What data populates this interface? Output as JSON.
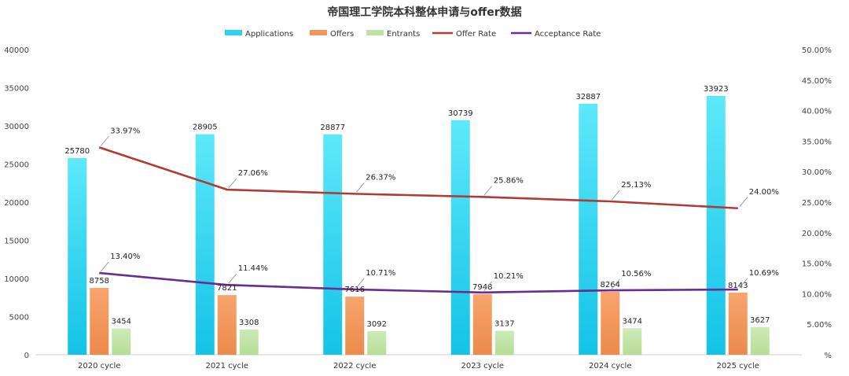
{
  "chart_data": {
    "type": "bar",
    "title": "帝国理工学院本科整体申请与offer数据",
    "categories": [
      "2020 cycle",
      "2021 cycle",
      "2022 cycle",
      "2023 cycle",
      "2024 cycle",
      "2025 cycle"
    ],
    "series": [
      {
        "name": "Applications",
        "kind": "bar",
        "axis": "left",
        "color": "#2fd3ef",
        "values": [
          25780,
          28905,
          28877,
          30739,
          32887,
          33923
        ]
      },
      {
        "name": "Offers",
        "kind": "bar",
        "axis": "left",
        "color": "#f2955a",
        "values": [
          8758,
          7821,
          7616,
          7948,
          8264,
          8143
        ]
      },
      {
        "name": "Entrants",
        "kind": "bar",
        "axis": "left",
        "color": "#bfe3a4",
        "values": [
          3454,
          3308,
          3092,
          3137,
          3474,
          3627
        ]
      },
      {
        "name": "Offer Rate",
        "kind": "line",
        "axis": "right",
        "color": "#b03a35",
        "values": [
          33.97,
          27.06,
          26.37,
          25.86,
          25.13,
          24.0
        ]
      },
      {
        "name": "Acceptance Rate",
        "kind": "line",
        "axis": "right",
        "color": "#6a2c91",
        "values": [
          13.4,
          11.44,
          10.71,
          10.21,
          10.56,
          10.69
        ]
      }
    ],
    "y_left": {
      "min": 0,
      "max": 40000,
      "step": 5000,
      "ticks": [
        "0",
        "5000",
        "10000",
        "15000",
        "20000",
        "25000",
        "30000",
        "35000",
        "40000"
      ]
    },
    "y_right": {
      "min": 0,
      "max": 50,
      "step": 5,
      "ticks": [
        "%",
        "5.00%",
        "10.00%",
        "15.00%",
        "20.00%",
        "25.00%",
        "30.00%",
        "35.00%",
        "40.00%",
        "45.00%",
        "50.00%"
      ]
    },
    "legend_position": "top-center",
    "grid": false,
    "data_labels": true
  }
}
